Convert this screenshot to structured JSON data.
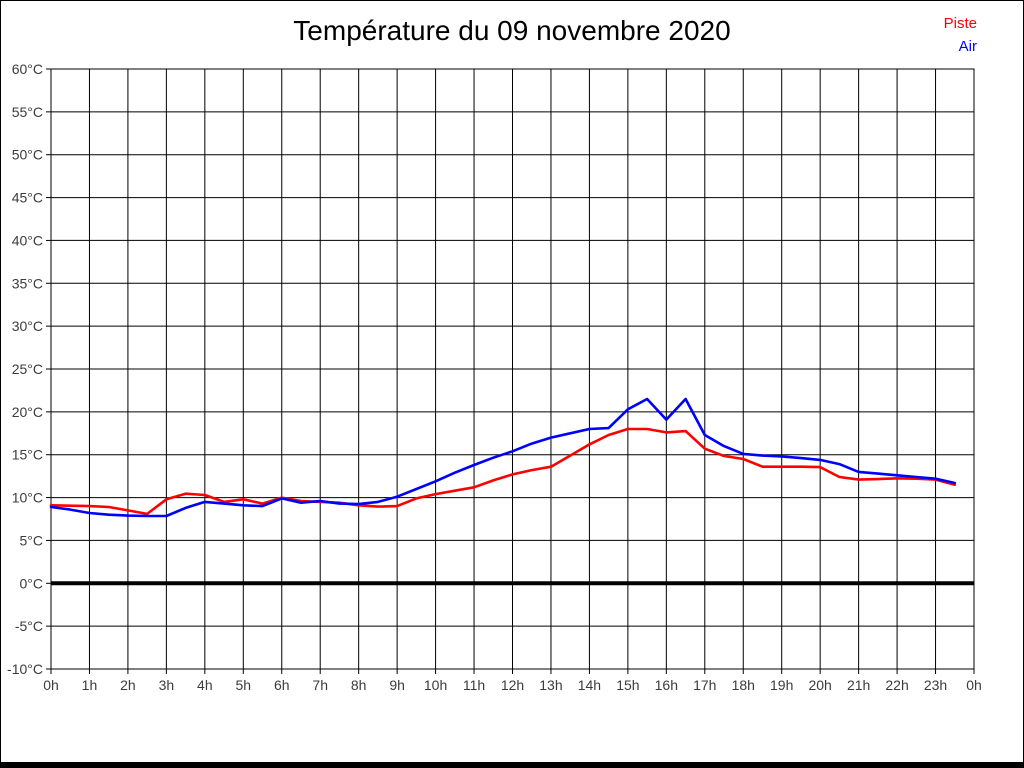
{
  "title": "Température du 09 novembre 2020",
  "legend": [
    {
      "label": "Piste",
      "color": "#ff0000"
    },
    {
      "label": "Air",
      "color": "#0000ff"
    }
  ],
  "chart_data": {
    "type": "line",
    "title": "Température du 09 novembre 2020",
    "xlabel": "",
    "ylabel": "",
    "xlim": [
      0,
      24
    ],
    "ylim": [
      -10,
      60
    ],
    "y_tick_step": 5,
    "y_tick_labels": [
      "-10°C",
      "-5°C",
      "0°C",
      "5°C",
      "10°C",
      "15°C",
      "20°C",
      "25°C",
      "30°C",
      "35°C",
      "40°C",
      "45°C",
      "50°C",
      "55°C",
      "60°C"
    ],
    "x_tick_hours": [
      0,
      1,
      2,
      3,
      4,
      5,
      6,
      7,
      8,
      9,
      10,
      11,
      12,
      13,
      14,
      15,
      16,
      17,
      18,
      19,
      20,
      21,
      22,
      23,
      24
    ],
    "x_tick_labels": [
      "0h",
      "1h",
      "2h",
      "3h",
      "4h",
      "5h",
      "6h",
      "7h",
      "8h",
      "9h",
      "10h",
      "11h",
      "12h",
      "13h",
      "14h",
      "15h",
      "16h",
      "17h",
      "18h",
      "19h",
      "20h",
      "21h",
      "22h",
      "23h",
      "0h"
    ],
    "grid": true,
    "zero_line": true,
    "legend_position": "top-right",
    "x": [
      0,
      0.5,
      1,
      1.5,
      2,
      2.5,
      3,
      3.5,
      4,
      4.5,
      5,
      5.5,
      6,
      6.5,
      7,
      7.5,
      8,
      8.5,
      9,
      9.5,
      10,
      10.5,
      11,
      11.5,
      12,
      12.5,
      13,
      13.5,
      14,
      14.5,
      15,
      15.5,
      16,
      16.5,
      17,
      17.5,
      18,
      18.5,
      19,
      19.5,
      20,
      20.5,
      21,
      21.5,
      22,
      22.5,
      23,
      23.5
    ],
    "series": [
      {
        "name": "Piste",
        "color": "#ff0000",
        "values": [
          9.1,
          9.05,
          9.0,
          8.9,
          8.5,
          8.1,
          9.8,
          10.45,
          10.3,
          9.5,
          9.8,
          9.3,
          10.0,
          9.6,
          9.5,
          9.4,
          9.1,
          8.95,
          9.0,
          9.9,
          10.4,
          10.8,
          11.2,
          12.0,
          12.7,
          13.2,
          13.6,
          14.9,
          16.2,
          17.3,
          18.0,
          18.0,
          17.6,
          17.75,
          15.7,
          14.85,
          14.5,
          13.6,
          13.6,
          13.6,
          13.55,
          12.4,
          12.1,
          12.15,
          12.25,
          12.2,
          12.1,
          11.5
        ]
      },
      {
        "name": "Air",
        "color": "#0000ff",
        "values": [
          8.9,
          8.6,
          8.2,
          8.0,
          7.9,
          7.85,
          7.85,
          8.8,
          9.5,
          9.3,
          9.1,
          9.0,
          9.9,
          9.4,
          9.6,
          9.3,
          9.25,
          9.5,
          10.1,
          11.0,
          11.9,
          12.9,
          13.8,
          14.65,
          15.4,
          16.3,
          17.0,
          17.5,
          18.0,
          18.1,
          20.3,
          21.5,
          19.1,
          21.5,
          17.3,
          16.0,
          15.1,
          14.9,
          14.8,
          14.6,
          14.4,
          13.9,
          13.0,
          12.8,
          12.6,
          12.4,
          12.2,
          11.7
        ]
      }
    ],
    "styles": {
      "background": "#ffffff",
      "grid_color": "#000000",
      "zero_line_color": "#000000",
      "tick_label_color": "#3c3c3c",
      "border_color": "#000000"
    }
  }
}
